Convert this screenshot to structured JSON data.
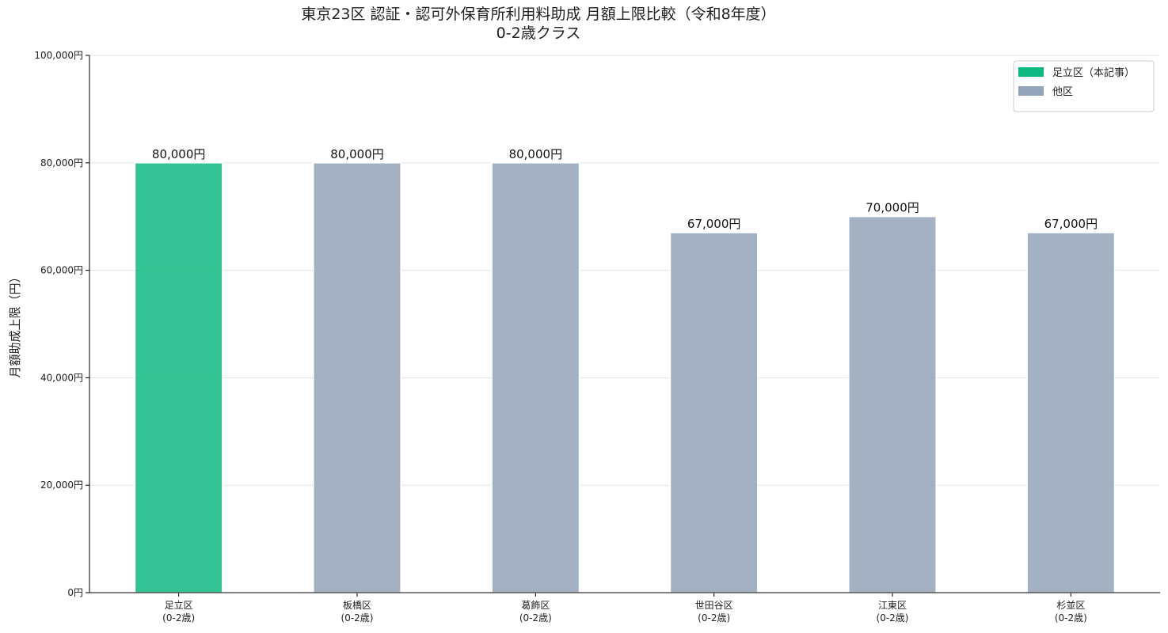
{
  "chart_data": {
    "type": "bar",
    "title": "東京23区 認証・認可外保育所利用料助成 月額上限比較（令和8年度）\n0-2歳クラス",
    "y_label": "月額助成上限（円）",
    "categories": [
      "足立区\n(0-2歳)",
      "板橋区\n(0-2歳)",
      "葛飾区\n(0-2歳)",
      "世田谷区\n(0-2歳)",
      "江東区\n(0-2歳)",
      "杉並区\n(0-2歳)"
    ],
    "series": [
      {
        "name": "足立区（本記事）",
        "color": "#10b981",
        "values": [
          80000,
          null,
          null,
          null,
          null,
          null
        ],
        "value_labels": [
          "80,000円",
          null,
          null,
          null,
          null,
          null
        ]
      },
      {
        "name": "他区",
        "color": "#94a3b8",
        "values": [
          null,
          80000,
          80000,
          67000,
          70000,
          67000
        ],
        "value_labels": [
          null,
          "80,000円",
          "80,000円",
          "67,000円",
          "70,000円",
          "67,000円"
        ]
      }
    ],
    "ylim": [
      0,
      100000
    ],
    "yticks": [
      {
        "value": 0,
        "label": "0円"
      },
      {
        "value": 20000,
        "label": "20,000円"
      },
      {
        "value": 40000,
        "label": "40,000円"
      },
      {
        "value": 60000,
        "label": "60,000円"
      },
      {
        "value": 80000,
        "label": "80,000円"
      },
      {
        "value": 100000,
        "label": "100,000円"
      }
    ],
    "grid": true,
    "legend": "upper right"
  }
}
